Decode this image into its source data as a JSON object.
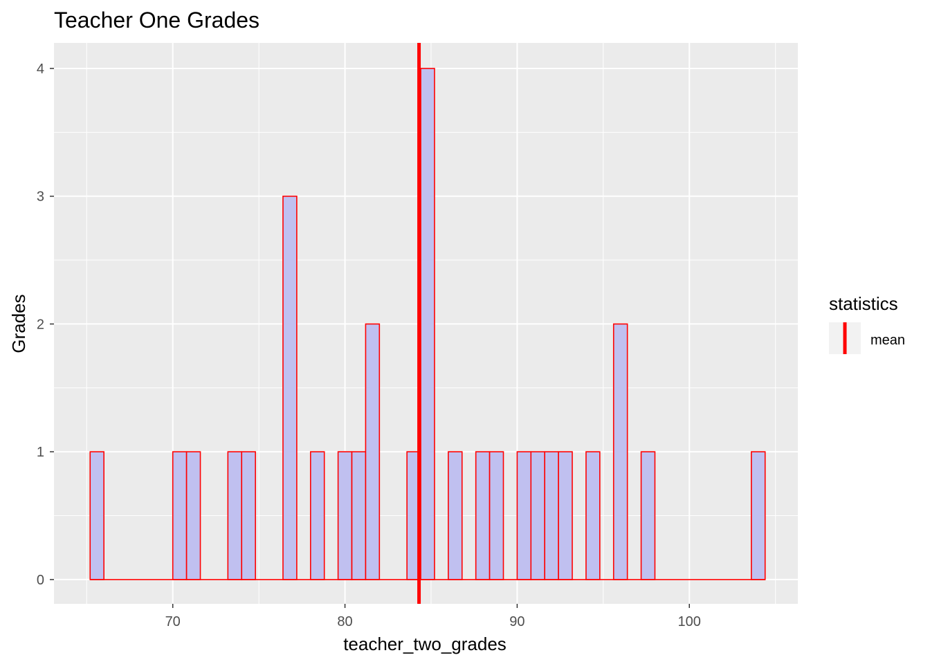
{
  "chart_data": {
    "type": "bar",
    "subtype": "histogram",
    "title": "Teacher One Grades",
    "xlabel": "teacher_two_grades",
    "ylabel": "Grades",
    "xlim": [
      63.1,
      106.3
    ],
    "ylim": [
      -0.19,
      4.2
    ],
    "x_ticks": [
      70,
      80,
      90,
      100
    ],
    "y_ticks": [
      0,
      1,
      2,
      3,
      4
    ],
    "bin_width": 0.8,
    "first_bin_start": 65.2,
    "counts": [
      1,
      0,
      0,
      0,
      0,
      0,
      1,
      1,
      0,
      0,
      1,
      1,
      0,
      0,
      3,
      0,
      1,
      0,
      1,
      1,
      2,
      0,
      0,
      1,
      4,
      0,
      1,
      0,
      1,
      1,
      0,
      1,
      1,
      1,
      1,
      0,
      1,
      0,
      2,
      0,
      1,
      0,
      0,
      0,
      0,
      0,
      0,
      0,
      1
    ],
    "mean_line": {
      "x": 84.3,
      "color": "#ff0000",
      "label": "mean"
    },
    "fill_color": "#c0c0f0",
    "bar_outline_color": "#ff0000",
    "panel_background": "#ebebeb",
    "grid": true,
    "legend": {
      "title": "statistics",
      "position": "right",
      "items": [
        "mean"
      ]
    }
  }
}
